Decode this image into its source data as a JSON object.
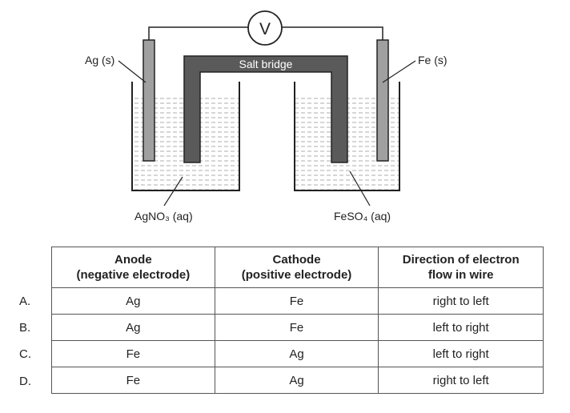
{
  "diagram": {
    "voltmeter_label": "V",
    "salt_bridge_label": "Salt bridge",
    "left_electrode_label": "Ag (s)",
    "right_electrode_label": "Fe (s)",
    "left_solution_label": "AgNO₃ (aq)",
    "right_solution_label": "FeSO₄ (aq)"
  },
  "table": {
    "headers": [
      [
        "Anode",
        "(negative electrode)"
      ],
      [
        "Cathode",
        "(positive electrode)"
      ],
      [
        "Direction of electron",
        "flow in wire"
      ]
    ],
    "rows": [
      {
        "option": "A.",
        "cells": [
          "Ag",
          "Fe",
          "right to left"
        ]
      },
      {
        "option": "B.",
        "cells": [
          "Ag",
          "Fe",
          "left to right"
        ]
      },
      {
        "option": "C.",
        "cells": [
          "Fe",
          "Ag",
          "left to right"
        ]
      },
      {
        "option": "D.",
        "cells": [
          "Fe",
          "Ag",
          "right to left"
        ]
      }
    ]
  }
}
